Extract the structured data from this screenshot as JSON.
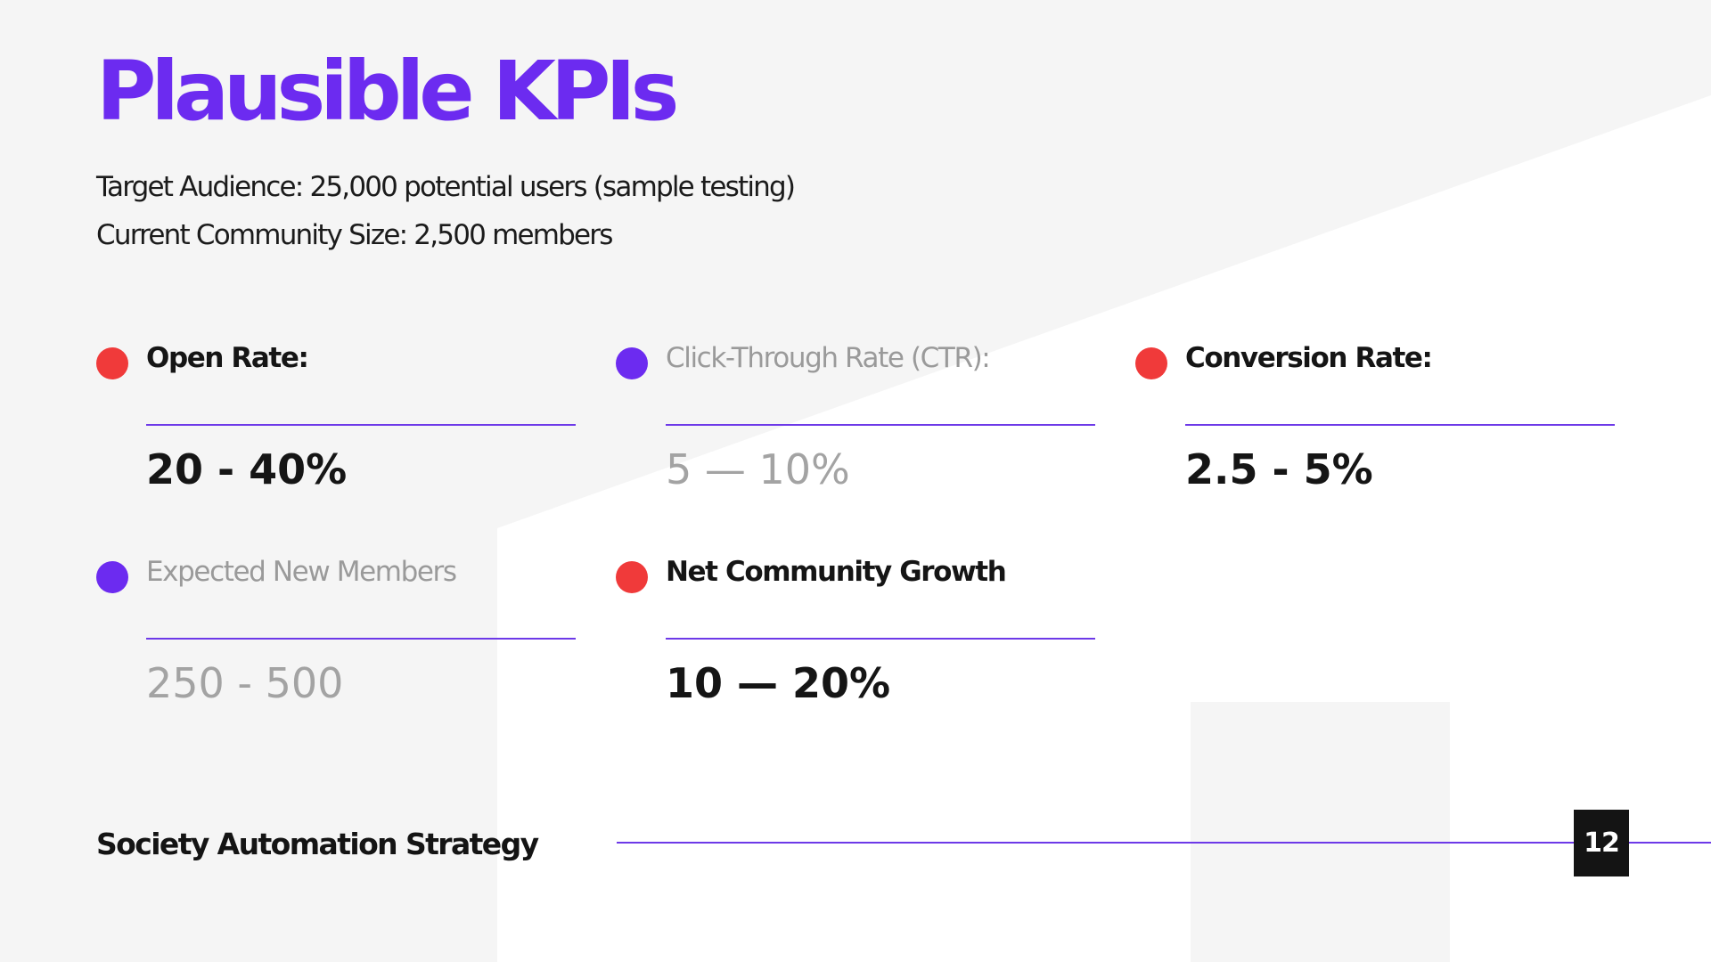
{
  "slide": {
    "title": "Plausible KPIs",
    "subtitle_lines": [
      "Target Audience: 25,000 potential users (sample testing)",
      "Current Community Size: 2,500 members"
    ],
    "kpis": [
      {
        "label": "Open Rate:",
        "value": "20 - 40%",
        "dot_color": "#f03a3a"
      },
      {
        "label": "Click-Through Rate (CTR):",
        "value": "5 — 10%",
        "dot_color": "#6c2bf0"
      },
      {
        "label": "Conversion Rate:",
        "value": "2.5 - 5%",
        "dot_color": "#f03a3a"
      },
      {
        "label": "Expected New Members",
        "value": "250 - 500",
        "dot_color": "#6c2bf0"
      },
      {
        "label": "Net Community Growth",
        "value": "10 — 20%",
        "dot_color": "#f03a3a"
      }
    ],
    "footer": {
      "text": "Society Automation Strategy",
      "page_number": "12"
    }
  },
  "colors": {
    "accent_purple": "#6c2bf0",
    "accent_red": "#f03a3a",
    "text_dark": "#151515",
    "text_muted": "#a3a3a3",
    "background": "#f5f5f5"
  }
}
